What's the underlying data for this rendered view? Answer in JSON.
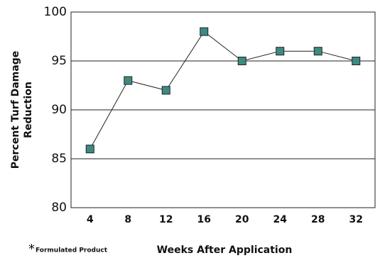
{
  "chart_data": {
    "type": "line",
    "ylabel": [
      "Percent Turf Damage",
      "Reduction"
    ],
    "xlabel": "Weeks After Application",
    "footnote_marker": "*",
    "footnote": "Formulated Product",
    "x": [
      4,
      8,
      12,
      16,
      20,
      24,
      28,
      32
    ],
    "series": [
      {
        "name": "Formulated Product",
        "color": "#3d8a82",
        "values": [
          86,
          93,
          92,
          98,
          95,
          96,
          96,
          95
        ]
      }
    ],
    "xlim": [
      2,
      34
    ],
    "xticks": [
      4,
      8,
      12,
      16,
      20,
      24,
      28,
      32
    ],
    "ylim": [
      80,
      100
    ],
    "yticks": [
      80,
      85,
      90,
      95,
      100
    ],
    "grid": true
  }
}
